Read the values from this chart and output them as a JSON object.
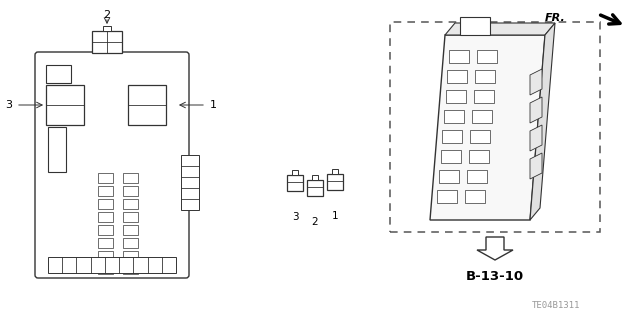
{
  "bg_color": "#ffffff",
  "fr_label": "FR.",
  "part_code": "B-13-10",
  "doc_code": "TE04B1311",
  "line_color": "#333333",
  "light_gray": "#bbbbbb"
}
